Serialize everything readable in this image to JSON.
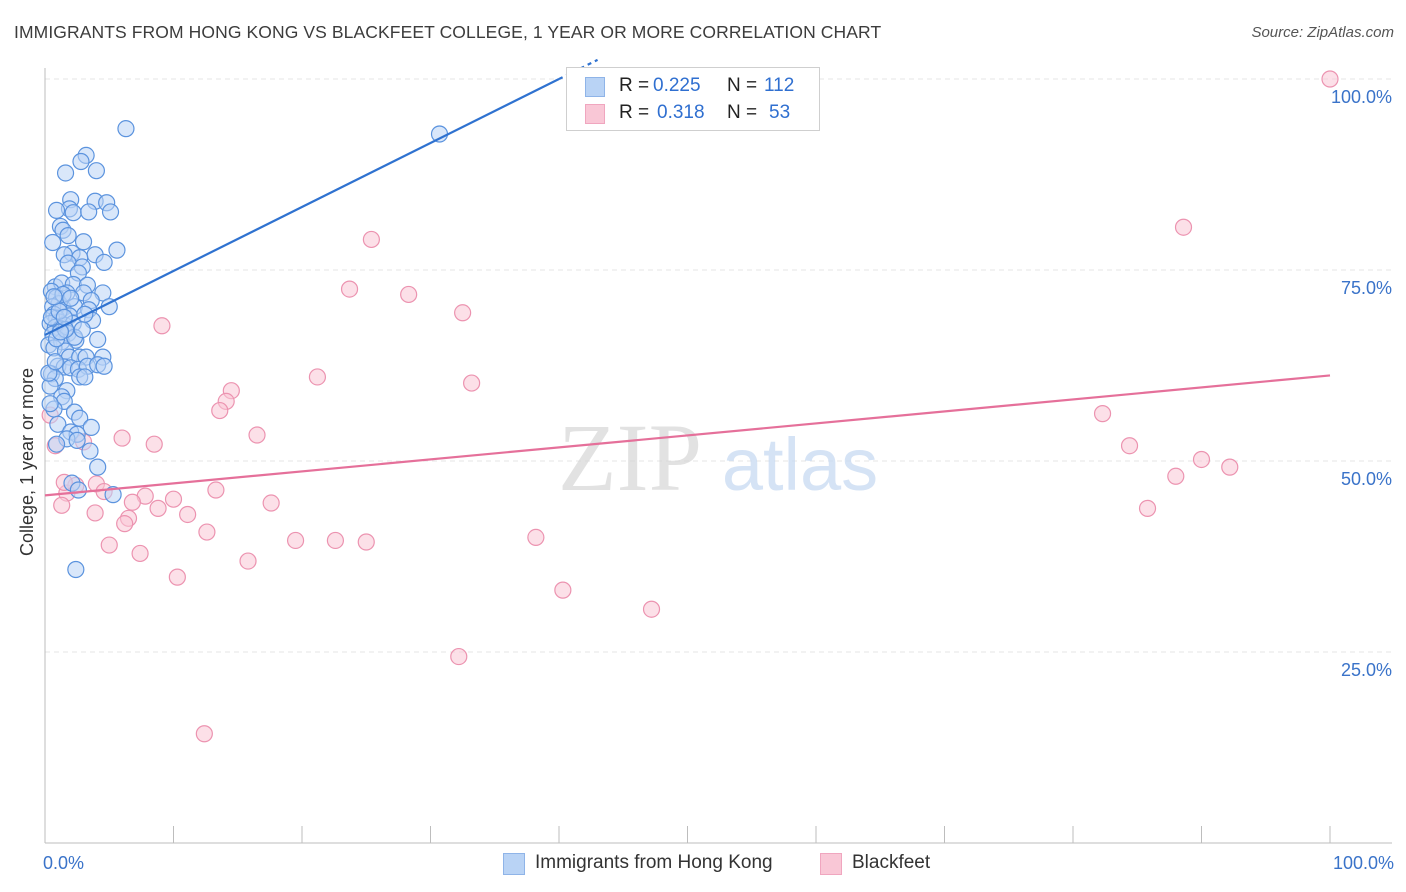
{
  "title": "IMMIGRANTS FROM HONG KONG VS BLACKFEET COLLEGE, 1 YEAR OR MORE CORRELATION CHART",
  "source": "Source: ZipAtlas.com",
  "watermark": {
    "part1": "ZIP",
    "part2": "atlas"
  },
  "colors": {
    "blue_fill": "#b9d3f5",
    "blue_stroke": "#5b93de",
    "blue_line": "#2f72d0",
    "pink_fill": "#f9c7d6",
    "pink_stroke": "#ec93b0",
    "pink_line": "#e5709a",
    "tick_label": "#3a73c9",
    "grid": "#e4e4e4"
  },
  "legend": {
    "series1": {
      "r_label": "R =",
      "r_value": "0.225",
      "n_label": "N =",
      "n_value": "112"
    },
    "series2": {
      "r_label": "R =",
      "r_value": "0.318",
      "n_label": "N =",
      "n_value": "53"
    }
  },
  "chart_data": {
    "type": "scatter",
    "title": "IMMIGRANTS FROM HONG KONG VS BLACKFEET COLLEGE, 1 YEAR OR MORE CORRELATION CHART",
    "xlabel": "",
    "ylabel": "College, 1 year or more",
    "xlim": [
      0,
      100
    ],
    "ylim": [
      0,
      100
    ],
    "x_tick_labels": {
      "left": "0.0%",
      "right": "100.0%"
    },
    "y_ticks": [
      {
        "value": 100,
        "label": "100.0%"
      },
      {
        "value": 75,
        "label": "75.0%"
      },
      {
        "value": 50,
        "label": "50.0%"
      },
      {
        "value": 25,
        "label": "25.0%"
      }
    ],
    "grid": true,
    "legend_position": "top-center",
    "series": [
      {
        "name": "Immigrants from Hong Kong",
        "color": "blue",
        "r": 0.225,
        "n": 112,
        "trend": {
          "x0": 0,
          "y0": 66.5,
          "x1": 40,
          "y1": 100
        },
        "points": [
          [
            6.3,
            93.5
          ],
          [
            30.7,
            92.8
          ],
          [
            3.2,
            90.0
          ],
          [
            2.8,
            89.2
          ],
          [
            1.6,
            87.7
          ],
          [
            4.0,
            88.0
          ],
          [
            2.0,
            84.2
          ],
          [
            3.9,
            84.0
          ],
          [
            4.8,
            83.8
          ],
          [
            1.9,
            83.0
          ],
          [
            0.9,
            82.8
          ],
          [
            2.2,
            82.5
          ],
          [
            3.4,
            82.6
          ],
          [
            5.1,
            82.6
          ],
          [
            1.2,
            80.7
          ],
          [
            1.4,
            80.2
          ],
          [
            1.8,
            79.5
          ],
          [
            0.6,
            78.6
          ],
          [
            3.0,
            78.7
          ],
          [
            5.6,
            77.6
          ],
          [
            2.1,
            77.2
          ],
          [
            1.5,
            77.0
          ],
          [
            3.9,
            77.0
          ],
          [
            2.7,
            76.6
          ],
          [
            4.6,
            76.0
          ],
          [
            1.8,
            75.9
          ],
          [
            2.9,
            75.4
          ],
          [
            2.6,
            74.6
          ],
          [
            0.8,
            72.8
          ],
          [
            1.3,
            73.3
          ],
          [
            2.2,
            73.1
          ],
          [
            3.3,
            73.0
          ],
          [
            0.5,
            72.2
          ],
          [
            1.7,
            72.0
          ],
          [
            3.0,
            72.0
          ],
          [
            4.5,
            72.0
          ],
          [
            0.9,
            71.4
          ],
          [
            1.1,
            70.6
          ],
          [
            3.6,
            71.0
          ],
          [
            0.6,
            70.2
          ],
          [
            1.4,
            70.0
          ],
          [
            2.3,
            70.2
          ],
          [
            3.4,
            69.8
          ],
          [
            5.0,
            70.2
          ],
          [
            0.7,
            69.2
          ],
          [
            1.9,
            69.0
          ],
          [
            0.9,
            68.7
          ],
          [
            1.1,
            68.2
          ],
          [
            0.4,
            68.0
          ],
          [
            1.5,
            67.8
          ],
          [
            2.2,
            68.0
          ],
          [
            3.7,
            68.4
          ],
          [
            0.8,
            67.5
          ],
          [
            1.2,
            67.3
          ],
          [
            0.6,
            66.6
          ],
          [
            1.8,
            66.7
          ],
          [
            0.3,
            65.2
          ],
          [
            1.3,
            65.6
          ],
          [
            2.4,
            65.8
          ],
          [
            4.1,
            65.9
          ],
          [
            0.7,
            64.8
          ],
          [
            1.6,
            64.4
          ],
          [
            1.9,
            63.6
          ],
          [
            2.7,
            63.6
          ],
          [
            3.2,
            63.6
          ],
          [
            4.5,
            63.6
          ],
          [
            1.0,
            62.4
          ],
          [
            1.5,
            62.3
          ],
          [
            2.0,
            62.2
          ],
          [
            2.6,
            62.0
          ],
          [
            3.3,
            62.4
          ],
          [
            4.1,
            62.6
          ],
          [
            4.6,
            62.4
          ],
          [
            0.5,
            61.4
          ],
          [
            0.8,
            60.8
          ],
          [
            2.7,
            61.0
          ],
          [
            3.1,
            61.0
          ],
          [
            0.4,
            59.8
          ],
          [
            1.7,
            59.2
          ],
          [
            1.3,
            58.4
          ],
          [
            1.5,
            57.8
          ],
          [
            0.7,
            56.8
          ],
          [
            2.3,
            56.4
          ],
          [
            2.7,
            55.6
          ],
          [
            1.0,
            54.8
          ],
          [
            2.0,
            53.8
          ],
          [
            3.6,
            54.4
          ],
          [
            2.5,
            53.5
          ],
          [
            1.7,
            52.9
          ],
          [
            2.5,
            52.7
          ],
          [
            0.9,
            52.2
          ],
          [
            3.5,
            51.3
          ],
          [
            4.1,
            49.2
          ],
          [
            2.1,
            47.1
          ],
          [
            2.6,
            46.2
          ],
          [
            5.3,
            45.6
          ],
          [
            2.4,
            35.8
          ],
          [
            0.4,
            57.5
          ],
          [
            0.3,
            61.5
          ],
          [
            0.5,
            68.8
          ],
          [
            1.1,
            69.6
          ],
          [
            0.9,
            66.0
          ],
          [
            1.4,
            71.8
          ],
          [
            2.3,
            66.2
          ],
          [
            1.6,
            67.2
          ],
          [
            0.8,
            63.0
          ],
          [
            2.9,
            67.2
          ],
          [
            3.1,
            69.2
          ],
          [
            1.2,
            66.9
          ],
          [
            0.7,
            71.5
          ],
          [
            2.0,
            71.3
          ],
          [
            1.5,
            68.8
          ]
        ]
      },
      {
        "name": "Blackfeet",
        "color": "pink",
        "r": 0.318,
        "n": 53,
        "trend": {
          "x0": 0,
          "y0": 45.5,
          "x1": 100,
          "y1": 61.2
        },
        "points": [
          [
            100.0,
            100.0
          ],
          [
            88.6,
            80.6
          ],
          [
            25.4,
            79.0
          ],
          [
            23.7,
            72.5
          ],
          [
            28.3,
            71.8
          ],
          [
            32.5,
            69.4
          ],
          [
            9.1,
            67.7
          ],
          [
            21.2,
            61.0
          ],
          [
            33.2,
            60.2
          ],
          [
            14.5,
            59.2
          ],
          [
            14.1,
            57.8
          ],
          [
            13.6,
            56.6
          ],
          [
            82.3,
            56.2
          ],
          [
            16.5,
            53.4
          ],
          [
            6.0,
            53.0
          ],
          [
            8.5,
            52.2
          ],
          [
            0.4,
            56.0
          ],
          [
            84.4,
            52.0
          ],
          [
            90.0,
            50.2
          ],
          [
            92.2,
            49.2
          ],
          [
            88.0,
            48.0
          ],
          [
            4.0,
            47.0
          ],
          [
            13.3,
            46.2
          ],
          [
            1.7,
            45.8
          ],
          [
            7.8,
            45.4
          ],
          [
            10.0,
            45.0
          ],
          [
            17.6,
            44.5
          ],
          [
            1.3,
            44.2
          ],
          [
            3.9,
            43.2
          ],
          [
            8.8,
            43.8
          ],
          [
            11.1,
            43.0
          ],
          [
            6.5,
            42.5
          ],
          [
            6.2,
            41.8
          ],
          [
            12.6,
            40.7
          ],
          [
            38.2,
            40.0
          ],
          [
            19.5,
            39.6
          ],
          [
            22.6,
            39.6
          ],
          [
            25.0,
            39.4
          ],
          [
            5.0,
            39.0
          ],
          [
            7.4,
            37.9
          ],
          [
            15.8,
            36.9
          ],
          [
            10.3,
            34.8
          ],
          [
            40.3,
            33.1
          ],
          [
            47.2,
            30.6
          ],
          [
            32.2,
            24.4
          ],
          [
            12.4,
            14.3
          ],
          [
            85.8,
            43.8
          ],
          [
            3.0,
            52.5
          ],
          [
            0.8,
            52.0
          ],
          [
            4.6,
            46.0
          ],
          [
            2.4,
            46.8
          ],
          [
            6.8,
            44.6
          ],
          [
            1.5,
            47.2
          ]
        ]
      }
    ]
  }
}
